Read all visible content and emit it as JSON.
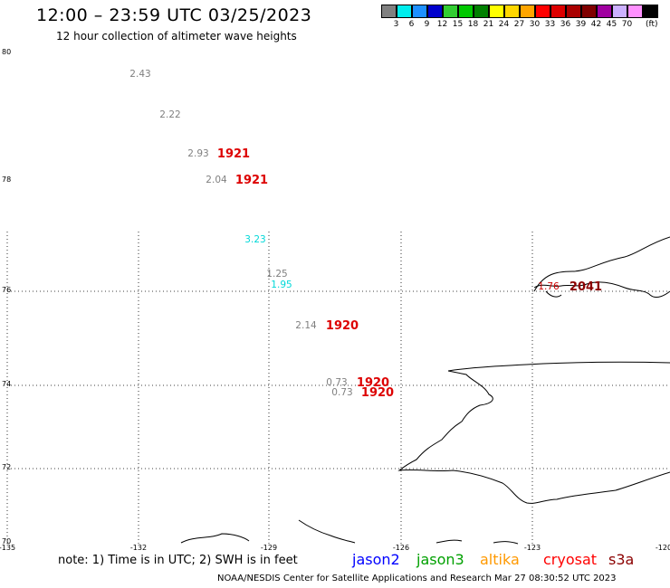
{
  "header": {
    "title": "12:00 – 23:59 UTC 03/25/2023",
    "subtitle": "12 hour collection of altimeter wave heights"
  },
  "legend": {
    "colors": [
      "#808080",
      "#00eeee",
      "#1e90ff",
      "#0000cd",
      "#32cd32",
      "#00c800",
      "#008000",
      "#ffff00",
      "#ffd700",
      "#ffa500",
      "#ff0000",
      "#dd0000",
      "#aa0000",
      "#800000",
      "#a000a0",
      "#ccb0ff",
      "#ff90ff",
      "#000000"
    ],
    "labels": [
      "3",
      "6",
      "9",
      "12",
      "15",
      "18",
      "21",
      "24",
      "27",
      "30",
      "33",
      "36",
      "39",
      "42",
      "45",
      "70"
    ],
    "unit": "(ft)"
  },
  "axes": {
    "lat_labels": [
      "80",
      "78",
      "76",
      "74",
      "72",
      "70"
    ],
    "lon_labels": [
      "-135",
      "-132",
      "-129",
      "-126",
      "-123",
      "-120"
    ]
  },
  "wave_heights": [
    {
      "value": "2.43",
      "color": "#808080"
    },
    {
      "value": "2.22",
      "color": "#808080"
    },
    {
      "value": "2.93",
      "color": "#808080"
    },
    {
      "value": "2.04",
      "color": "#808080"
    },
    {
      "value": "3.23",
      "color": "#00d8d8"
    },
    {
      "value": "1.25",
      "color": "#808080"
    },
    {
      "value": "1.95",
      "color": "#00d8d8"
    },
    {
      "value": "2.14",
      "color": "#808080"
    },
    {
      "value": "0.73",
      "color": "#808080"
    },
    {
      "value": "0.73",
      "color": "#808080"
    },
    {
      "value": "1.76",
      "color": "#cc0000"
    }
  ],
  "pass_times": [
    {
      "value": "1921",
      "color": "#dd0000"
    },
    {
      "value": "1921",
      "color": "#dd0000"
    },
    {
      "value": "1920",
      "color": "#dd0000"
    },
    {
      "value": "1920",
      "color": "#dd0000"
    },
    {
      "value": "1920",
      "color": "#dd0000"
    },
    {
      "value": "2041",
      "color": "#8b0000"
    }
  ],
  "footer": {
    "note": "note: 1) Time is in UTC; 2) SWH is in feet",
    "satellites": [
      {
        "name": "jason2",
        "color": "#0000ff"
      },
      {
        "name": "jason3",
        "color": "#00a000"
      },
      {
        "name": "altika",
        "color": "#ff9900"
      },
      {
        "name": "cryosat",
        "color": "#ff0000"
      },
      {
        "name": "s3a",
        "color": "#8b0000"
      }
    ],
    "credit": "NOAA/NESDIS Center for Satellite Applications and Research    Mar 27 08:30:52 UTC 2023"
  }
}
